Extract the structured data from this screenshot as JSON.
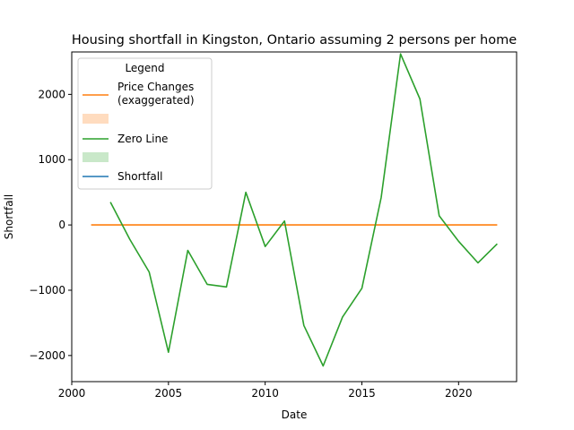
{
  "chart_data": {
    "type": "line",
    "title": "Housing shortfall in Kingston, Ontario assuming 2 persons per home",
    "xlabel": "Date",
    "ylabel": "Shortfall",
    "xlim": [
      2000,
      2023
    ],
    "ylim": [
      -2400,
      2650
    ],
    "xticks": [
      2000,
      2005,
      2010,
      2015,
      2020
    ],
    "yticks": [
      -2000,
      -1000,
      0,
      1000,
      2000
    ],
    "grid": false,
    "legend": {
      "title": "Legend",
      "placement": "top-left",
      "entries": [
        {
          "label": "Price Changes\n(exaggerated)",
          "kind": "line",
          "color": "#ff7f0e"
        },
        {
          "label": "",
          "kind": "patch",
          "color": "#ffdcbf"
        },
        {
          "label": "Zero Line",
          "kind": "line",
          "color": "#2ca02c"
        },
        {
          "label": "",
          "kind": "patch",
          "color": "#c9e8c9"
        },
        {
          "label": "Shortfall",
          "kind": "line",
          "color": "#1f77b4"
        }
      ]
    },
    "series": [
      {
        "color": "#ff7f0e",
        "x": [
          2001,
          2022
        ],
        "y": [
          0,
          0
        ]
      },
      {
        "color": "#2ca02c",
        "x": [
          2002,
          2003,
          2004,
          2005,
          2006,
          2007,
          2008,
          2009,
          2010,
          2011,
          2012,
          2013,
          2014,
          2015,
          2016,
          2017,
          2018,
          2019,
          2020,
          2021,
          2022
        ],
        "y": [
          350,
          -220,
          -720,
          -1950,
          -390,
          -910,
          -950,
          500,
          -330,
          60,
          -1540,
          -2160,
          -1410,
          -970,
          420,
          2620,
          1930,
          140,
          -250,
          -580,
          -290
        ]
      }
    ]
  }
}
